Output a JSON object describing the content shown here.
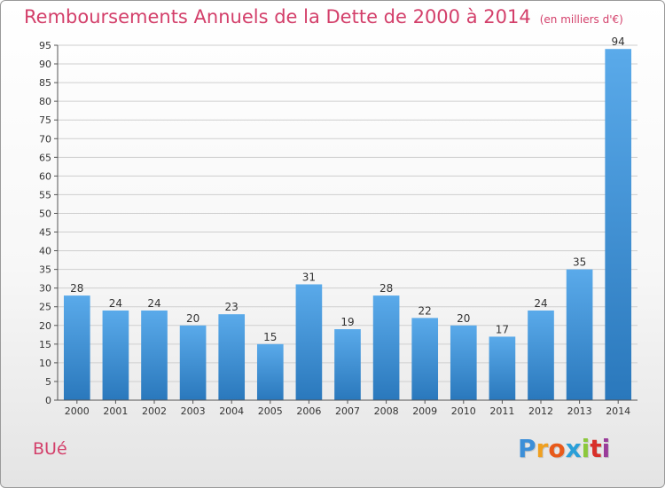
{
  "title": {
    "main": "Remboursements Annuels de la Dette de 2000 à 2014",
    "unit": "(en milliers d'€)"
  },
  "commune": "BUé",
  "logo": {
    "letters": [
      "P",
      "r",
      "o",
      "x",
      "i",
      "t",
      "i"
    ],
    "colors": [
      "#3c8fd8",
      "#f0a020",
      "#e85a1a",
      "#2a9fd8",
      "#8cc83c",
      "#d8302a",
      "#9a3c9a"
    ]
  },
  "colors": {
    "accent": "#d33f6a",
    "bar_light": "#5aaaea",
    "bar_dark": "#2a78bc",
    "grid": "#cfcfcf",
    "axis": "#555555"
  },
  "chart_data": {
    "type": "bar",
    "title": "Remboursements Annuels de la Dette de 2000 à 2014",
    "xlabel": "",
    "ylabel": "",
    "categories": [
      "2000",
      "2001",
      "2002",
      "2003",
      "2004",
      "2005",
      "2006",
      "2007",
      "2008",
      "2009",
      "2010",
      "2011",
      "2012",
      "2013",
      "2014"
    ],
    "values": [
      28,
      24,
      24,
      20,
      23,
      15,
      31,
      19,
      28,
      22,
      20,
      17,
      24,
      35,
      94
    ],
    "ylim": [
      0,
      95
    ],
    "yticks": [
      0,
      5,
      10,
      15,
      20,
      25,
      30,
      35,
      40,
      45,
      50,
      55,
      60,
      65,
      70,
      75,
      80,
      85,
      90,
      95
    ],
    "grid": true,
    "data_labels": true
  }
}
